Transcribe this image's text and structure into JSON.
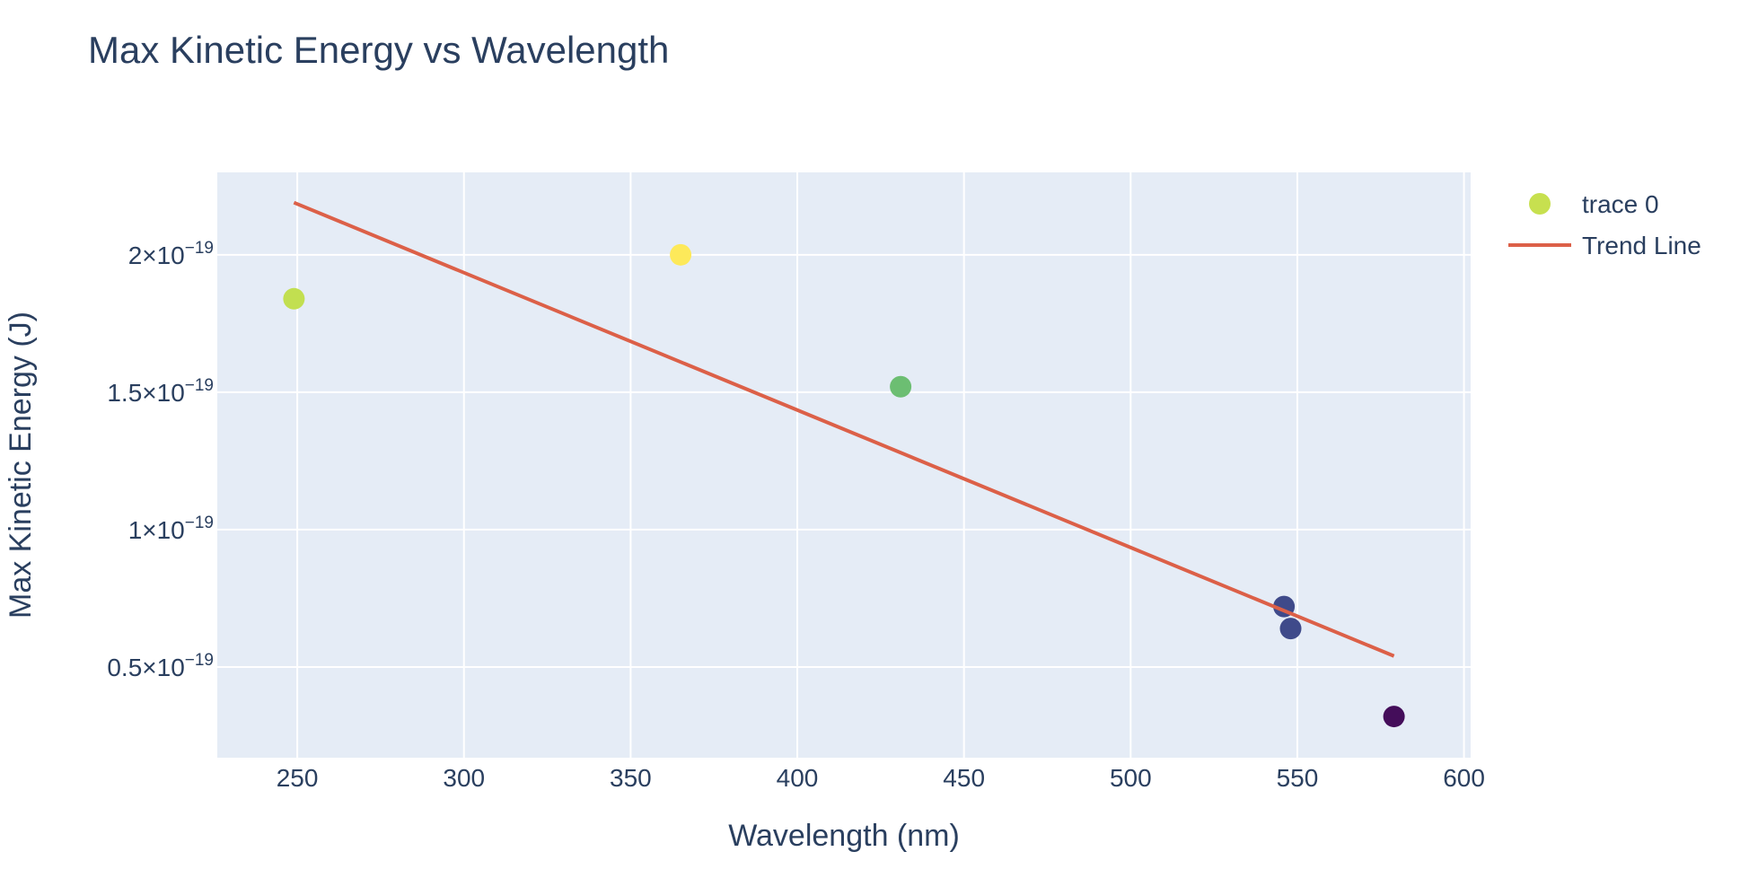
{
  "chart_data": {
    "type": "scatter",
    "title": "Max Kinetic Energy vs Wavelength",
    "xlabel": "Wavelength (nm)",
    "ylabel": "Max Kinetic Energy (J)",
    "xlim": [
      226,
      602
    ],
    "ylim": [
      1.7e-20,
      2.3e-19
    ],
    "x_ticks": [
      {
        "value": 250,
        "label": "250"
      },
      {
        "value": 300,
        "label": "300"
      },
      {
        "value": 350,
        "label": "350"
      },
      {
        "value": 400,
        "label": "400"
      },
      {
        "value": 450,
        "label": "450"
      },
      {
        "value": 500,
        "label": "500"
      },
      {
        "value": 550,
        "label": "550"
      },
      {
        "value": 600,
        "label": "600"
      }
    ],
    "y_ticks": [
      {
        "value": 5e-20,
        "mantissa": "0.5×10",
        "exponent": "−19"
      },
      {
        "value": 1e-19,
        "mantissa": "1×10",
        "exponent": "−19"
      },
      {
        "value": 1.5e-19,
        "mantissa": "1.5×10",
        "exponent": "−19"
      },
      {
        "value": 2e-19,
        "mantissa": "2×10",
        "exponent": "−19"
      }
    ],
    "grid": true,
    "background": "#e5ecf6",
    "legend_position": "top-right",
    "series": [
      {
        "name": "trace 0",
        "mode": "markers",
        "legend_color": "#c7e04f",
        "points": [
          {
            "x": 249,
            "y": 1.84e-19,
            "color": "#c2df50"
          },
          {
            "x": 365,
            "y": 2e-19,
            "color": "#fde95a"
          },
          {
            "x": 431,
            "y": 1.52e-19,
            "color": "#6cbe72"
          },
          {
            "x": 546,
            "y": 7.2e-20,
            "color": "#3f4a8a"
          },
          {
            "x": 548,
            "y": 6.4e-20,
            "color": "#3f4a8a"
          },
          {
            "x": 579,
            "y": 3.2e-20,
            "color": "#440d5a"
          }
        ]
      },
      {
        "name": "Trend Line",
        "mode": "lines",
        "color": "#dc6048",
        "points": [
          {
            "x": 249,
            "y": 2.19e-19
          },
          {
            "x": 579,
            "y": 5.4e-20
          }
        ]
      }
    ]
  }
}
